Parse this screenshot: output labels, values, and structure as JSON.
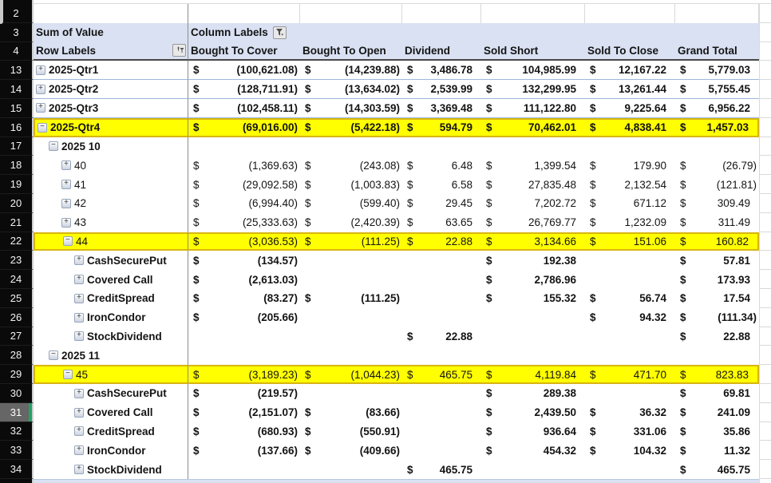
{
  "table": {
    "currency_symbol": "$",
    "sum_label": "Sum of Value",
    "column_labels": "Column Labels",
    "row_labels": "Row Labels",
    "row2_num": "2",
    "row3_num": "3",
    "row4_num": "4",
    "columns": [
      "Bought To Cover",
      "Bought To Open",
      "Dividend",
      "Sold Short",
      "Sold To Close",
      "Grand Total"
    ],
    "rows": [
      {
        "num": "13",
        "label": "2025-Qtr1",
        "level": 1,
        "exp": "plus",
        "bold": true,
        "valBold": true,
        "sep": true,
        "vals": [
          "(100,621.08)",
          "(14,239.88)",
          "3,486.78",
          "104,985.99",
          "12,167.22",
          "5,779.03"
        ]
      },
      {
        "num": "14",
        "label": "2025-Qtr2",
        "level": 1,
        "exp": "plus",
        "bold": true,
        "valBold": true,
        "sep": true,
        "vals": [
          "(128,711.91)",
          "(13,634.02)",
          "2,539.99",
          "132,299.95",
          "13,261.44",
          "5,755.45"
        ]
      },
      {
        "num": "15",
        "label": "2025-Qtr3",
        "level": 1,
        "exp": "plus",
        "bold": true,
        "valBold": true,
        "sep": true,
        "vals": [
          "(102,458.11)",
          "(14,303.59)",
          "3,369.48",
          "111,122.80",
          "9,225.64",
          "6,956.22"
        ]
      },
      {
        "num": "16",
        "label": "2025-Qtr4",
        "level": 1,
        "exp": "minus",
        "bold": true,
        "valBold": true,
        "hl": true,
        "vals": [
          "(69,016.00)",
          "(5,422.18)",
          "594.79",
          "70,462.01",
          "4,838.41",
          "1,457.03"
        ]
      },
      {
        "num": "17",
        "label": "2025 10",
        "level": 2,
        "exp": "minus",
        "bold": true,
        "vals": [
          "",
          "",
          "",
          "",
          "",
          ""
        ]
      },
      {
        "num": "18",
        "label": "40",
        "level": 3,
        "exp": "plus",
        "vals": [
          "(1,369.63)",
          "(243.08)",
          "6.48",
          "1,399.54",
          "179.90",
          "(26.79)"
        ]
      },
      {
        "num": "19",
        "label": "41",
        "level": 3,
        "exp": "plus",
        "vals": [
          "(29,092.58)",
          "(1,003.83)",
          "6.58",
          "27,835.48",
          "2,132.54",
          "(121.81)"
        ]
      },
      {
        "num": "20",
        "label": "42",
        "level": 3,
        "exp": "plus",
        "vals": [
          "(6,994.40)",
          "(599.40)",
          "29.45",
          "7,202.72",
          "671.12",
          "309.49"
        ]
      },
      {
        "num": "21",
        "label": "43",
        "level": 3,
        "exp": "plus",
        "vals": [
          "(25,333.63)",
          "(2,420.39)",
          "63.65",
          "26,769.77",
          "1,232.09",
          "311.49"
        ]
      },
      {
        "num": "22",
        "label": "44",
        "level": 3,
        "exp": "minus",
        "hl": true,
        "vals": [
          "(3,036.53)",
          "(111.25)",
          "22.88",
          "3,134.66",
          "151.06",
          "160.82"
        ]
      },
      {
        "num": "23",
        "label": "CashSecurePut",
        "level": 4,
        "exp": "plus",
        "bold": true,
        "valBold": true,
        "vals": [
          "(134.57)",
          "",
          "",
          "192.38",
          "",
          "57.81"
        ]
      },
      {
        "num": "24",
        "label": "Covered Call",
        "level": 4,
        "exp": "plus",
        "bold": true,
        "valBold": true,
        "vals": [
          "(2,613.03)",
          "",
          "",
          "2,786.96",
          "",
          "173.93"
        ]
      },
      {
        "num": "25",
        "label": "CreditSpread",
        "level": 4,
        "exp": "plus",
        "bold": true,
        "valBold": true,
        "vals": [
          "(83.27)",
          "(111.25)",
          "",
          "155.32",
          "56.74",
          "17.54"
        ]
      },
      {
        "num": "26",
        "label": "IronCondor",
        "level": 4,
        "exp": "plus",
        "bold": true,
        "valBold": true,
        "vals": [
          "(205.66)",
          "",
          "",
          "",
          "94.32",
          "(111.34)"
        ]
      },
      {
        "num": "27",
        "label": "StockDividend",
        "level": 4,
        "exp": "plus",
        "bold": true,
        "valBold": true,
        "vals": [
          "",
          "",
          "22.88",
          "",
          "",
          "22.88"
        ]
      },
      {
        "num": "28",
        "label": "2025 11",
        "level": 2,
        "exp": "minus",
        "bold": true,
        "vals": [
          "",
          "",
          "",
          "",
          "",
          ""
        ]
      },
      {
        "num": "29",
        "label": "45",
        "level": 3,
        "exp": "minus",
        "hl": true,
        "vals": [
          "(3,189.23)",
          "(1,044.23)",
          "465.75",
          "4,119.84",
          "471.70",
          "823.83"
        ]
      },
      {
        "num": "30",
        "label": "CashSecurePut",
        "level": 4,
        "exp": "plus",
        "bold": true,
        "valBold": true,
        "vals": [
          "(219.57)",
          "",
          "",
          "289.38",
          "",
          "69.81"
        ]
      },
      {
        "num": "31",
        "label": "Covered Call",
        "level": 4,
        "exp": "plus",
        "bold": true,
        "valBold": true,
        "selected": true,
        "vals": [
          "(2,151.07)",
          "(83.66)",
          "",
          "2,439.50",
          "36.32",
          "241.09"
        ]
      },
      {
        "num": "32",
        "label": "CreditSpread",
        "level": 4,
        "exp": "plus",
        "bold": true,
        "valBold": true,
        "vals": [
          "(680.93)",
          "(550.91)",
          "",
          "936.64",
          "331.06",
          "35.86"
        ]
      },
      {
        "num": "33",
        "label": "IronCondor",
        "level": 4,
        "exp": "plus",
        "bold": true,
        "valBold": true,
        "vals": [
          "(137.66)",
          "(409.66)",
          "",
          "454.32",
          "104.32",
          "11.32"
        ]
      },
      {
        "num": "34",
        "label": "StockDividend",
        "level": 4,
        "exp": "plus",
        "bold": true,
        "valBold": true,
        "vals": [
          "",
          "",
          "465.75",
          "",
          "",
          "465.75"
        ]
      }
    ]
  }
}
